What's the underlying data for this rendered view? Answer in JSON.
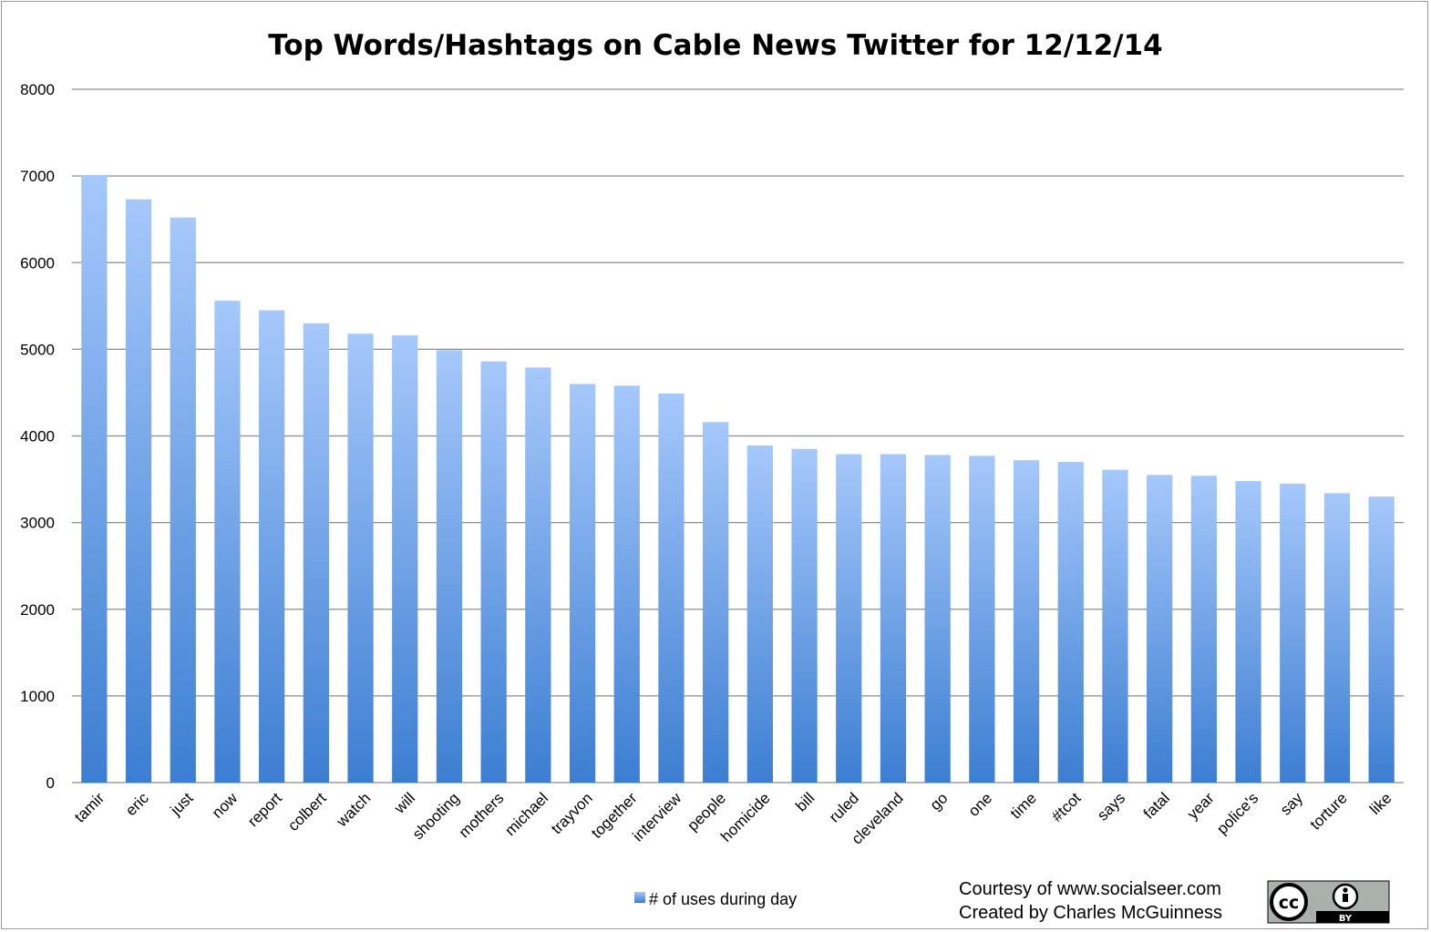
{
  "chart_data": {
    "type": "bar",
    "title": "Top Words/Hashtags on Cable News Twitter for 12/12/14",
    "xlabel": "",
    "ylabel": "",
    "ylim": [
      0,
      8000
    ],
    "yticks": [
      0,
      1000,
      2000,
      3000,
      4000,
      5000,
      6000,
      7000,
      8000
    ],
    "grid": true,
    "legend_position": "bottom-center",
    "categories": [
      "tamir",
      "eric",
      "just",
      "now",
      "report",
      "colbert",
      "watch",
      "will",
      "shooting",
      "mothers",
      "michael",
      "trayvon",
      "together",
      "interview",
      "people",
      "homicide",
      "bill",
      "ruled",
      "cleveland",
      "go",
      "one",
      "time",
      "#tcot",
      "says",
      "fatal",
      "year",
      "police's",
      "say",
      "torture",
      "like"
    ],
    "series": [
      {
        "name": "# of uses during day",
        "color_top": "#a6c8fb",
        "color_bottom": "#3c7ed2",
        "values": [
          7010,
          6730,
          6520,
          5560,
          5450,
          5300,
          5180,
          5160,
          4990,
          4860,
          4790,
          4600,
          4580,
          4490,
          4160,
          3890,
          3850,
          3790,
          3790,
          3780,
          3770,
          3720,
          3700,
          3610,
          3550,
          3540,
          3480,
          3450,
          3340,
          3300
        ]
      }
    ]
  },
  "credits": {
    "line1": "Courtesy of www.socialseer.com",
    "line2": "Created by Charles McGuinness"
  },
  "license_badge": {
    "icon": "creative-commons-by-icon",
    "cc_text": "cc",
    "by_text": "BY"
  }
}
